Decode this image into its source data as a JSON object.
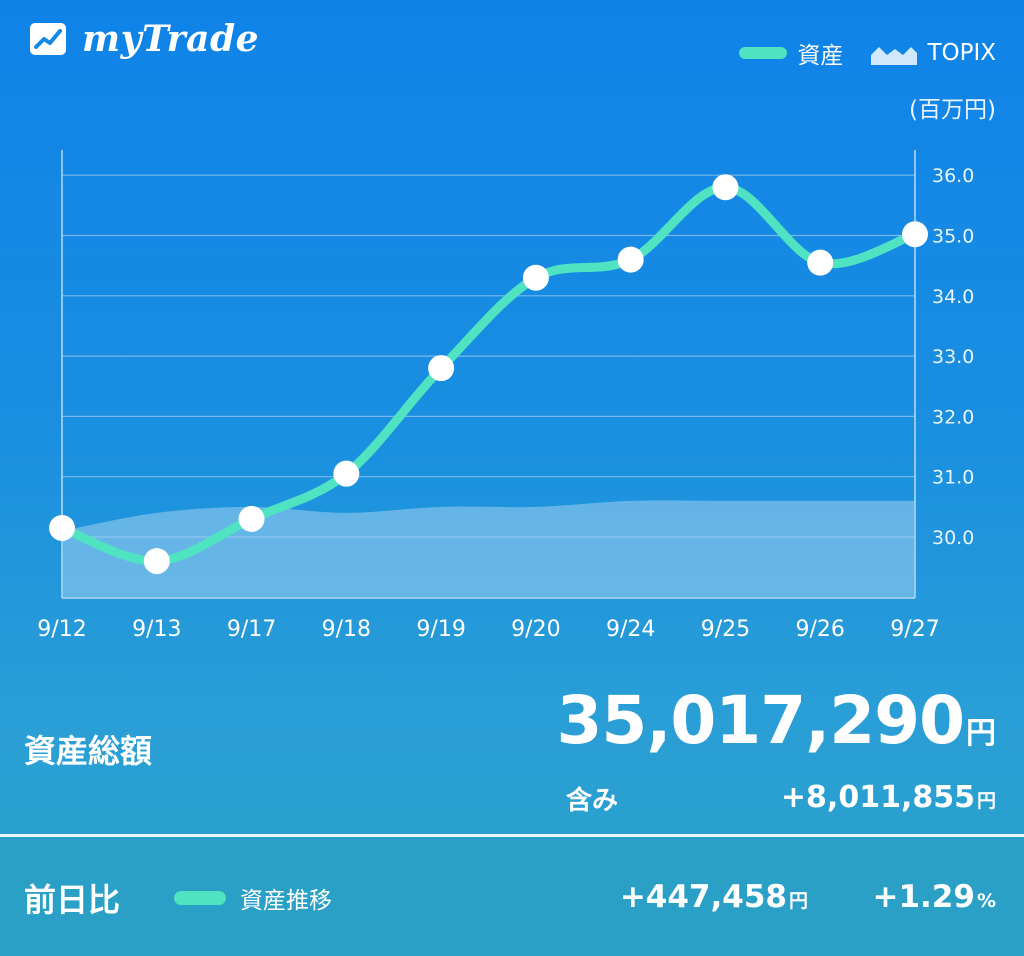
{
  "app": {
    "name": "myTrade",
    "logo_icon": "mytrade-logo-icon"
  },
  "legend": {
    "asset_label": "資産",
    "topix_label": "TOPIX",
    "unit_label": "(百万円)"
  },
  "colors": {
    "asset_line": "#4fe3c1",
    "topix_area": "#9fd0ee",
    "grid": "#8cc4f2"
  },
  "chart_data": {
    "type": "line",
    "categories": [
      "9/12",
      "9/13",
      "9/17",
      "9/18",
      "9/19",
      "9/20",
      "9/24",
      "9/25",
      "9/26",
      "9/27"
    ],
    "series": [
      {
        "name": "資産",
        "type": "line",
        "values": [
          30.15,
          29.6,
          30.3,
          31.05,
          32.8,
          34.3,
          34.6,
          35.8,
          34.55,
          35.02
        ]
      },
      {
        "name": "TOPIX",
        "type": "area",
        "values": [
          30.1,
          30.4,
          30.5,
          30.4,
          30.5,
          30.5,
          30.6,
          30.6,
          30.6,
          30.6
        ]
      }
    ],
    "y_ticks": [
      "30.0",
      "31.0",
      "32.0",
      "33.0",
      "34.0",
      "35.0",
      "36.0"
    ],
    "ylim": [
      29.0,
      36.4
    ],
    "grid": true,
    "y_axis_position": "right",
    "legend_position": "top-right"
  },
  "summary": {
    "total_label": "資産総額",
    "total_value": "35,017,290",
    "total_unit": "円",
    "includes_label": "含み",
    "includes_value": "+8,011,855",
    "includes_unit": "円"
  },
  "footer": {
    "day_label": "前日比",
    "trend_label": "資産推移",
    "delta_value": "+447,458",
    "delta_unit": "円",
    "percent_value": "+1.29",
    "percent_unit": "%"
  }
}
